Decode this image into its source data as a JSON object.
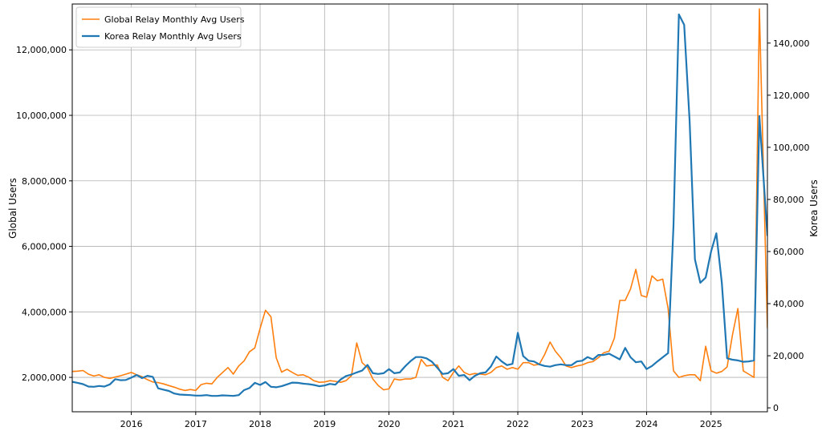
{
  "chart_data": {
    "type": "line",
    "title": "",
    "xlabel": "",
    "ylabel_left": "Global Users",
    "ylabel_right": "Korea Users",
    "xlim": [
      2015.083,
      2025.875
    ],
    "ylim_left": [
      950000,
      13400000
    ],
    "ylim_right": [
      -1500,
      155000
    ],
    "x_ticks": [
      {
        "label": "2016",
        "value": 2016
      },
      {
        "label": "2017",
        "value": 2017
      },
      {
        "label": "2018",
        "value": 2018
      },
      {
        "label": "2019",
        "value": 2019
      },
      {
        "label": "2020",
        "value": 2020
      },
      {
        "label": "2021",
        "value": 2021
      },
      {
        "label": "2022",
        "value": 2022
      },
      {
        "label": "2023",
        "value": 2023
      },
      {
        "label": "2024",
        "value": 2024
      },
      {
        "label": "2025",
        "value": 2025
      }
    ],
    "y_ticks_left": [
      {
        "label": "2,000,000",
        "value": 2000000
      },
      {
        "label": "4,000,000",
        "value": 4000000
      },
      {
        "label": "6,000,000",
        "value": 6000000
      },
      {
        "label": "8,000,000",
        "value": 8000000
      },
      {
        "label": "10,000,000",
        "value": 10000000
      },
      {
        "label": "12,000,000",
        "value": 12000000
      }
    ],
    "y_ticks_right": [
      {
        "label": "0",
        "value": 0
      },
      {
        "label": "20,000",
        "value": 20000
      },
      {
        "label": "40,000",
        "value": 40000
      },
      {
        "label": "60,000",
        "value": 60000
      },
      {
        "label": "80,000",
        "value": 80000
      },
      {
        "label": "100,000",
        "value": 100000
      },
      {
        "label": "120,000",
        "value": 120000
      },
      {
        "label": "140,000",
        "value": 140000
      }
    ],
    "grid": true,
    "legend_position": "top-left",
    "series": [
      {
        "name": "Global Relay Monthly Avg Users",
        "axis": "left",
        "color": "#ff7f0e",
        "line_width": 1.6,
        "points": [
          [
            2015.083,
            2180000
          ],
          [
            2015.167,
            2190000
          ],
          [
            2015.25,
            2210000
          ],
          [
            2015.333,
            2100000
          ],
          [
            2015.417,
            2040000
          ],
          [
            2015.5,
            2080000
          ],
          [
            2015.583,
            2000000
          ],
          [
            2015.667,
            1970000
          ],
          [
            2015.75,
            2010000
          ],
          [
            2015.833,
            2050000
          ],
          [
            2015.917,
            2100000
          ],
          [
            2016.0,
            2150000
          ],
          [
            2016.083,
            2080000
          ],
          [
            2016.167,
            2020000
          ],
          [
            2016.25,
            1930000
          ],
          [
            2016.333,
            1860000
          ],
          [
            2016.417,
            1840000
          ],
          [
            2016.5,
            1800000
          ],
          [
            2016.583,
            1750000
          ],
          [
            2016.667,
            1700000
          ],
          [
            2016.75,
            1640000
          ],
          [
            2016.833,
            1600000
          ],
          [
            2016.917,
            1630000
          ],
          [
            2017.0,
            1600000
          ],
          [
            2017.083,
            1780000
          ],
          [
            2017.167,
            1820000
          ],
          [
            2017.25,
            1800000
          ],
          [
            2017.333,
            2000000
          ],
          [
            2017.417,
            2150000
          ],
          [
            2017.5,
            2300000
          ],
          [
            2017.583,
            2100000
          ],
          [
            2017.667,
            2350000
          ],
          [
            2017.75,
            2500000
          ],
          [
            2017.833,
            2780000
          ],
          [
            2017.917,
            2900000
          ],
          [
            2018.0,
            3500000
          ],
          [
            2018.083,
            4050000
          ],
          [
            2018.167,
            3850000
          ],
          [
            2018.25,
            2600000
          ],
          [
            2018.333,
            2160000
          ],
          [
            2018.417,
            2250000
          ],
          [
            2018.5,
            2150000
          ],
          [
            2018.583,
            2060000
          ],
          [
            2018.667,
            2080000
          ],
          [
            2018.75,
            2010000
          ],
          [
            2018.833,
            1900000
          ],
          [
            2018.917,
            1850000
          ],
          [
            2019.0,
            1860000
          ],
          [
            2019.083,
            1900000
          ],
          [
            2019.167,
            1880000
          ],
          [
            2019.25,
            1850000
          ],
          [
            2019.333,
            1900000
          ],
          [
            2019.417,
            2050000
          ],
          [
            2019.5,
            3050000
          ],
          [
            2019.583,
            2450000
          ],
          [
            2019.667,
            2300000
          ],
          [
            2019.75,
            1950000
          ],
          [
            2019.833,
            1750000
          ],
          [
            2019.917,
            1620000
          ],
          [
            2020.0,
            1650000
          ],
          [
            2020.083,
            1950000
          ],
          [
            2020.167,
            1920000
          ],
          [
            2020.25,
            1950000
          ],
          [
            2020.333,
            1950000
          ],
          [
            2020.417,
            2000000
          ],
          [
            2020.5,
            2550000
          ],
          [
            2020.583,
            2350000
          ],
          [
            2020.667,
            2370000
          ],
          [
            2020.75,
            2380000
          ],
          [
            2020.833,
            2000000
          ],
          [
            2020.917,
            1900000
          ],
          [
            2021.0,
            2150000
          ],
          [
            2021.083,
            2350000
          ],
          [
            2021.167,
            2150000
          ],
          [
            2021.25,
            2080000
          ],
          [
            2021.333,
            2120000
          ],
          [
            2021.417,
            2100000
          ],
          [
            2021.5,
            2080000
          ],
          [
            2021.583,
            2150000
          ],
          [
            2021.667,
            2300000
          ],
          [
            2021.75,
            2350000
          ],
          [
            2021.833,
            2250000
          ],
          [
            2021.917,
            2300000
          ],
          [
            2022.0,
            2250000
          ],
          [
            2022.083,
            2450000
          ],
          [
            2022.167,
            2450000
          ],
          [
            2022.25,
            2370000
          ],
          [
            2022.333,
            2400000
          ],
          [
            2022.417,
            2700000
          ],
          [
            2022.5,
            3080000
          ],
          [
            2022.583,
            2800000
          ],
          [
            2022.667,
            2600000
          ],
          [
            2022.75,
            2350000
          ],
          [
            2022.833,
            2300000
          ],
          [
            2022.917,
            2350000
          ],
          [
            2023.0,
            2380000
          ],
          [
            2023.083,
            2450000
          ],
          [
            2023.167,
            2480000
          ],
          [
            2023.25,
            2600000
          ],
          [
            2023.333,
            2750000
          ],
          [
            2023.417,
            2800000
          ],
          [
            2023.5,
            3200000
          ],
          [
            2023.583,
            4350000
          ],
          [
            2023.667,
            4350000
          ],
          [
            2023.75,
            4700000
          ],
          [
            2023.833,
            5300000
          ],
          [
            2023.917,
            4500000
          ],
          [
            2024.0,
            4450000
          ],
          [
            2024.083,
            5100000
          ],
          [
            2024.167,
            4950000
          ],
          [
            2024.25,
            5000000
          ],
          [
            2024.333,
            4100000
          ],
          [
            2024.417,
            2200000
          ],
          [
            2024.5,
            2000000
          ],
          [
            2024.583,
            2050000
          ],
          [
            2024.667,
            2080000
          ],
          [
            2024.75,
            2080000
          ],
          [
            2024.833,
            1900000
          ],
          [
            2024.917,
            2950000
          ],
          [
            2025.0,
            2200000
          ],
          [
            2025.083,
            2130000
          ],
          [
            2025.167,
            2180000
          ],
          [
            2025.25,
            2320000
          ],
          [
            2025.333,
            3300000
          ],
          [
            2025.417,
            4100000
          ],
          [
            2025.5,
            2200000
          ],
          [
            2025.583,
            2100000
          ],
          [
            2025.667,
            2000000
          ],
          [
            2025.75,
            13250000
          ],
          [
            2025.875,
            3500000
          ]
        ]
      },
      {
        "name": "Korea Relay Monthly Avg Users",
        "axis": "right",
        "color": "#1f77b4",
        "line_width": 2.2,
        "points": [
          [
            2015.083,
            10000
          ],
          [
            2015.167,
            9600
          ],
          [
            2015.25,
            9100
          ],
          [
            2015.333,
            8200
          ],
          [
            2015.417,
            8100
          ],
          [
            2015.5,
            8400
          ],
          [
            2015.583,
            8200
          ],
          [
            2015.667,
            9000
          ],
          [
            2015.75,
            11000
          ],
          [
            2015.833,
            10600
          ],
          [
            2015.917,
            10700
          ],
          [
            2016.0,
            11600
          ],
          [
            2016.083,
            12600
          ],
          [
            2016.167,
            11400
          ],
          [
            2016.25,
            12300
          ],
          [
            2016.333,
            11900
          ],
          [
            2016.417,
            7500
          ],
          [
            2016.5,
            7000
          ],
          [
            2016.583,
            6500
          ],
          [
            2016.667,
            5500
          ],
          [
            2016.75,
            5100
          ],
          [
            2016.833,
            5000
          ],
          [
            2016.917,
            4900
          ],
          [
            2017.0,
            4700
          ],
          [
            2017.083,
            4700
          ],
          [
            2017.167,
            4900
          ],
          [
            2017.25,
            4600
          ],
          [
            2017.333,
            4600
          ],
          [
            2017.417,
            4800
          ],
          [
            2017.5,
            4700
          ],
          [
            2017.583,
            4600
          ],
          [
            2017.667,
            4900
          ],
          [
            2017.75,
            6800
          ],
          [
            2017.833,
            7600
          ],
          [
            2017.917,
            9600
          ],
          [
            2018.0,
            8800
          ],
          [
            2018.083,
            9900
          ],
          [
            2018.167,
            8100
          ],
          [
            2018.25,
            7900
          ],
          [
            2018.333,
            8300
          ],
          [
            2018.417,
            9000
          ],
          [
            2018.5,
            9700
          ],
          [
            2018.583,
            9600
          ],
          [
            2018.667,
            9300
          ],
          [
            2018.75,
            9100
          ],
          [
            2018.833,
            8800
          ],
          [
            2018.917,
            8300
          ],
          [
            2019.0,
            8600
          ],
          [
            2019.083,
            9200
          ],
          [
            2019.167,
            8900
          ],
          [
            2019.25,
            10900
          ],
          [
            2019.333,
            12200
          ],
          [
            2019.417,
            12800
          ],
          [
            2019.5,
            13600
          ],
          [
            2019.583,
            14300
          ],
          [
            2019.667,
            16500
          ],
          [
            2019.75,
            13300
          ],
          [
            2019.833,
            13000
          ],
          [
            2019.917,
            13300
          ],
          [
            2020.0,
            14900
          ],
          [
            2020.083,
            13300
          ],
          [
            2020.167,
            13600
          ],
          [
            2020.25,
            15900
          ],
          [
            2020.333,
            17900
          ],
          [
            2020.417,
            19500
          ],
          [
            2020.5,
            19500
          ],
          [
            2020.583,
            19000
          ],
          [
            2020.667,
            17700
          ],
          [
            2020.75,
            15400
          ],
          [
            2020.833,
            13000
          ],
          [
            2020.917,
            13300
          ],
          [
            2021.0,
            14900
          ],
          [
            2021.083,
            12300
          ],
          [
            2021.167,
            12600
          ],
          [
            2021.25,
            10600
          ],
          [
            2021.333,
            12300
          ],
          [
            2021.417,
            13300
          ],
          [
            2021.5,
            13600
          ],
          [
            2021.583,
            15900
          ],
          [
            2021.667,
            19700
          ],
          [
            2021.75,
            17800
          ],
          [
            2021.833,
            16400
          ],
          [
            2021.917,
            16900
          ],
          [
            2022.0,
            28800
          ],
          [
            2022.083,
            19900
          ],
          [
            2022.167,
            18100
          ],
          [
            2022.25,
            17800
          ],
          [
            2022.333,
            16700
          ],
          [
            2022.417,
            16100
          ],
          [
            2022.5,
            15800
          ],
          [
            2022.583,
            16400
          ],
          [
            2022.667,
            16700
          ],
          [
            2022.75,
            16400
          ],
          [
            2022.833,
            16400
          ],
          [
            2022.917,
            17800
          ],
          [
            2023.0,
            18100
          ],
          [
            2023.083,
            19500
          ],
          [
            2023.167,
            18600
          ],
          [
            2023.25,
            20300
          ],
          [
            2023.333,
            20300
          ],
          [
            2023.417,
            20800
          ],
          [
            2023.5,
            19700
          ],
          [
            2023.583,
            18600
          ],
          [
            2023.667,
            23000
          ],
          [
            2023.75,
            19400
          ],
          [
            2023.833,
            17500
          ],
          [
            2023.917,
            17800
          ],
          [
            2024.0,
            14900
          ],
          [
            2024.083,
            16100
          ],
          [
            2024.167,
            17800
          ],
          [
            2024.25,
            19400
          ],
          [
            2024.333,
            21000
          ],
          [
            2024.417,
            70000
          ],
          [
            2024.5,
            151000
          ],
          [
            2024.583,
            147000
          ],
          [
            2024.667,
            110000
          ],
          [
            2024.75,
            57000
          ],
          [
            2024.833,
            48000
          ],
          [
            2024.917,
            50000
          ],
          [
            2025.0,
            60000
          ],
          [
            2025.083,
            67000
          ],
          [
            2025.167,
            48000
          ],
          [
            2025.25,
            19000
          ],
          [
            2025.333,
            18500
          ],
          [
            2025.417,
            18200
          ],
          [
            2025.5,
            17700
          ],
          [
            2025.583,
            17800
          ],
          [
            2025.667,
            18200
          ],
          [
            2025.75,
            112000
          ],
          [
            2025.875,
            66000
          ]
        ]
      }
    ]
  }
}
